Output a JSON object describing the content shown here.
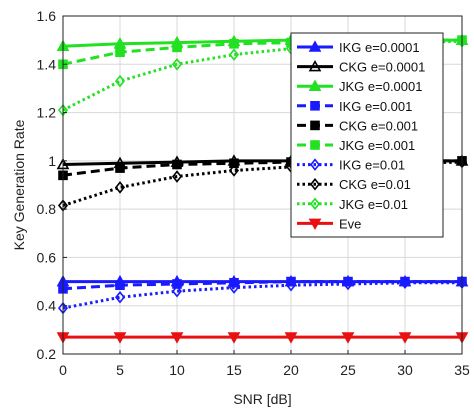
{
  "chart_data": {
    "type": "line",
    "xlabel": "SNR [dB]",
    "ylabel": "Key Generation Rate",
    "xlim": [
      0,
      35
    ],
    "ylim": [
      0.2,
      1.6
    ],
    "xticks": [
      0,
      5,
      10,
      15,
      20,
      25,
      30,
      35
    ],
    "yticks": [
      0.2,
      0.4,
      0.6,
      0.8,
      1,
      1.2,
      1.4,
      1.6
    ],
    "grid": true,
    "legend_position": "top-right",
    "x": [
      0,
      5,
      10,
      15,
      20,
      25,
      30,
      35
    ],
    "series": [
      {
        "name": "IKG e=0.0001",
        "color": "#1a1aff",
        "dash": "solid",
        "marker": "triangle-up",
        "filled": true,
        "values": [
          0.5,
          0.5,
          0.5,
          0.5,
          0.5,
          0.5,
          0.5,
          0.5
        ]
      },
      {
        "name": "CKG e=0.0001",
        "color": "#000000",
        "dash": "solid",
        "marker": "triangle-up",
        "filled": false,
        "values": [
          0.985,
          0.99,
          0.995,
          1.0,
          1.0,
          1.0,
          1.0,
          1.0
        ]
      },
      {
        "name": "JKG e=0.0001",
        "color": "#22e022",
        "dash": "solid",
        "marker": "triangle-up",
        "filled": true,
        "values": [
          1.475,
          1.485,
          1.49,
          1.495,
          1.5,
          1.5,
          1.5,
          1.5
        ]
      },
      {
        "name": "IKG e=0.001",
        "color": "#1a1aff",
        "dash": "dashed",
        "marker": "square",
        "filled": true,
        "values": [
          0.47,
          0.485,
          0.49,
          0.495,
          0.5,
          0.5,
          0.5,
          0.5
        ]
      },
      {
        "name": "CKG e=0.001",
        "color": "#000000",
        "dash": "dashed",
        "marker": "square",
        "filled": true,
        "values": [
          0.94,
          0.97,
          0.985,
          0.99,
          0.995,
          1.0,
          1.0,
          1.0
        ]
      },
      {
        "name": "JKG e=0.001",
        "color": "#22e022",
        "dash": "dashed",
        "marker": "square",
        "filled": true,
        "values": [
          1.4,
          1.45,
          1.47,
          1.485,
          1.49,
          1.495,
          1.5,
          1.5
        ]
      },
      {
        "name": "IKG e=0.01",
        "color": "#1a1aff",
        "dash": "dotted",
        "marker": "diamond",
        "filled": false,
        "values": [
          0.39,
          0.435,
          0.46,
          0.475,
          0.485,
          0.49,
          0.495,
          0.495
        ]
      },
      {
        "name": "CKG e=0.01",
        "color": "#000000",
        "dash": "dotted",
        "marker": "diamond",
        "filled": false,
        "values": [
          0.815,
          0.89,
          0.935,
          0.96,
          0.975,
          0.985,
          0.99,
          0.995
        ]
      },
      {
        "name": "JKG e=0.01",
        "color": "#22e022",
        "dash": "dotted",
        "marker": "diamond",
        "filled": false,
        "values": [
          1.21,
          1.33,
          1.4,
          1.44,
          1.465,
          1.48,
          1.49,
          1.495
        ]
      },
      {
        "name": "Eve",
        "color": "#e81010",
        "dash": "solid",
        "marker": "triangle-down",
        "filled": true,
        "values": [
          0.27,
          0.27,
          0.27,
          0.27,
          0.27,
          0.27,
          0.27,
          0.27
        ]
      }
    ]
  }
}
